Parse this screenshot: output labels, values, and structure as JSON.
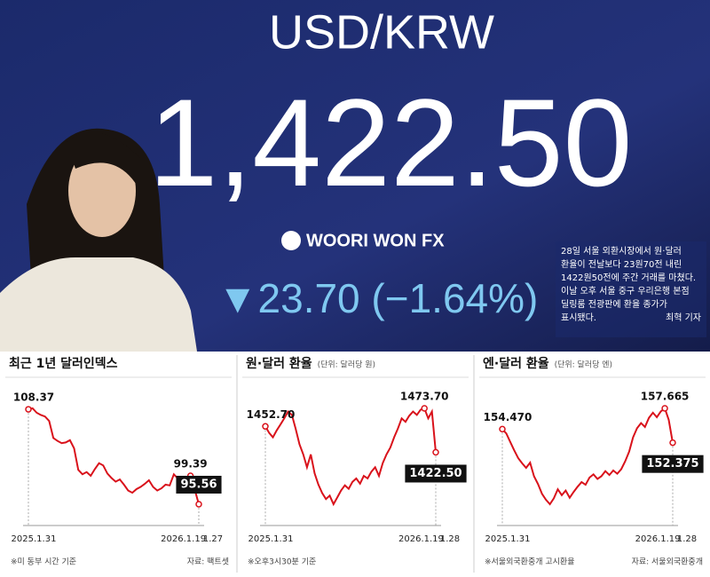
{
  "photo": {
    "board_title": "USD/KRW",
    "board_rate": "1,422.50",
    "board_brand": "WOORI WON FX",
    "board_change": "▼23.70 (−1.64%)",
    "caption": {
      "lines": [
        "28일 서울 외환시장에서 원·달러",
        "환율이 전날보다 23원70전 내린",
        "1422원50전에 주간 거래를 마쳤다.",
        "이날 오후 서울 중구 우리은행 본점",
        "딜링룸 전광판에 환율 종가가",
        "표시됐다."
      ],
      "byline": "최혁 기자"
    }
  },
  "chart_data": [
    {
      "type": "line",
      "title": "최근 1년 달러인덱스",
      "note": "※미 동부 시간 기준",
      "source": "자료: 팩트셋",
      "color": "#d9121b",
      "categories": [
        "2025.1.31",
        null,
        null,
        null,
        null,
        null,
        null,
        null,
        null,
        null,
        null,
        null,
        null,
        null,
        null,
        null,
        null,
        null,
        null,
        null,
        null,
        null,
        null,
        null,
        null,
        null,
        null,
        null,
        null,
        null,
        null,
        null,
        null,
        null,
        null,
        null,
        null,
        null,
        null,
        "2026.1.19",
        null,
        "1.27"
      ],
      "values": [
        108.37,
        108.5,
        107.9,
        107.6,
        107.4,
        106.8,
        104.5,
        104.1,
        103.8,
        103.9,
        104.2,
        103.1,
        100.2,
        99.6,
        99.9,
        99.4,
        100.3,
        101.1,
        100.8,
        99.7,
        99.1,
        98.6,
        98.9,
        98.2,
        97.4,
        97.1,
        97.6,
        97.9,
        98.3,
        98.8,
        97.9,
        97.4,
        97.7,
        98.2,
        98.1,
        99.6,
        99.0,
        98.4,
        98.7,
        99.39,
        97.6,
        95.56
      ],
      "value_labels": [
        "108.37",
        null,
        null,
        null,
        null,
        null,
        null,
        null,
        null,
        null,
        null,
        null,
        null,
        null,
        null,
        null,
        null,
        null,
        null,
        null,
        null,
        null,
        null,
        null,
        null,
        null,
        null,
        null,
        null,
        null,
        null,
        null,
        null,
        null,
        null,
        null,
        null,
        null,
        null,
        "99.39",
        null,
        "95.56"
      ]
    },
    {
      "type": "line",
      "title": "원·달러 환율",
      "subtitle": "(단위: 달러당 원)",
      "note": "※오후3시30분 기준",
      "color": "#d9121b",
      "categories": [
        "2025.1.31",
        null,
        null,
        null,
        null,
        null,
        null,
        null,
        null,
        null,
        null,
        null,
        null,
        null,
        null,
        null,
        null,
        null,
        null,
        null,
        null,
        null,
        null,
        null,
        null,
        null,
        null,
        null,
        null,
        null,
        null,
        null,
        null,
        null,
        null,
        null,
        null,
        null,
        null,
        null,
        null,
        null,
        null,
        "2026.1.19",
        null,
        "1.28"
      ],
      "values": [
        1452.7,
        1445,
        1440,
        1448,
        1455,
        1462,
        1470,
        1466,
        1450,
        1432,
        1420,
        1405,
        1420,
        1398,
        1385,
        1375,
        1368,
        1372,
        1362,
        1370,
        1378,
        1384,
        1380,
        1388,
        1392,
        1386,
        1395,
        1392,
        1400,
        1405,
        1395,
        1410,
        1420,
        1428,
        1440,
        1450,
        1462,
        1458,
        1465,
        1470,
        1466,
        1472,
        1473.7,
        1462,
        1470,
        1422.5
      ],
      "value_labels": [
        "1452.70",
        null,
        null,
        null,
        null,
        null,
        null,
        null,
        null,
        null,
        null,
        null,
        null,
        null,
        null,
        null,
        null,
        null,
        null,
        null,
        null,
        null,
        null,
        null,
        null,
        null,
        null,
        null,
        null,
        null,
        null,
        null,
        null,
        null,
        null,
        null,
        null,
        null,
        null,
        null,
        null,
        null,
        "1473.70",
        null,
        null,
        "1422.50"
      ]
    },
    {
      "type": "line",
      "title": "엔·달러 환율",
      "subtitle": "(단위: 달러당 엔)",
      "note": "※서울외국환중개 고시환율",
      "source": "자료: 서울외국환중개",
      "color": "#d9121b",
      "categories": [
        "2025.1.31",
        null,
        null,
        null,
        null,
        null,
        null,
        null,
        null,
        null,
        null,
        null,
        null,
        null,
        null,
        null,
        null,
        null,
        null,
        null,
        null,
        null,
        null,
        null,
        null,
        null,
        null,
        null,
        null,
        null,
        null,
        null,
        null,
        null,
        null,
        null,
        null,
        null,
        null,
        null,
        null,
        "2026.1.19",
        null,
        "1.28"
      ],
      "values": [
        154.47,
        153.8,
        152.5,
        151.2,
        150.0,
        149.2,
        148.5,
        149.3,
        147.2,
        146.0,
        144.5,
        143.6,
        142.9,
        143.8,
        145.2,
        144.3,
        145.0,
        143.9,
        144.8,
        145.6,
        146.3,
        145.9,
        147.0,
        147.5,
        146.8,
        147.2,
        148.0,
        147.4,
        148.1,
        147.6,
        148.3,
        149.5,
        151.0,
        153.2,
        154.6,
        155.4,
        154.8,
        156.2,
        157.0,
        156.3,
        157.2,
        157.665,
        155.9,
        152.375
      ],
      "value_labels": [
        "154.470",
        null,
        null,
        null,
        null,
        null,
        null,
        null,
        null,
        null,
        null,
        null,
        null,
        null,
        null,
        null,
        null,
        null,
        null,
        null,
        null,
        null,
        null,
        null,
        null,
        null,
        null,
        null,
        null,
        null,
        null,
        null,
        null,
        null,
        null,
        null,
        null,
        null,
        null,
        null,
        null,
        "157.665",
        null,
        "152.375"
      ]
    }
  ]
}
